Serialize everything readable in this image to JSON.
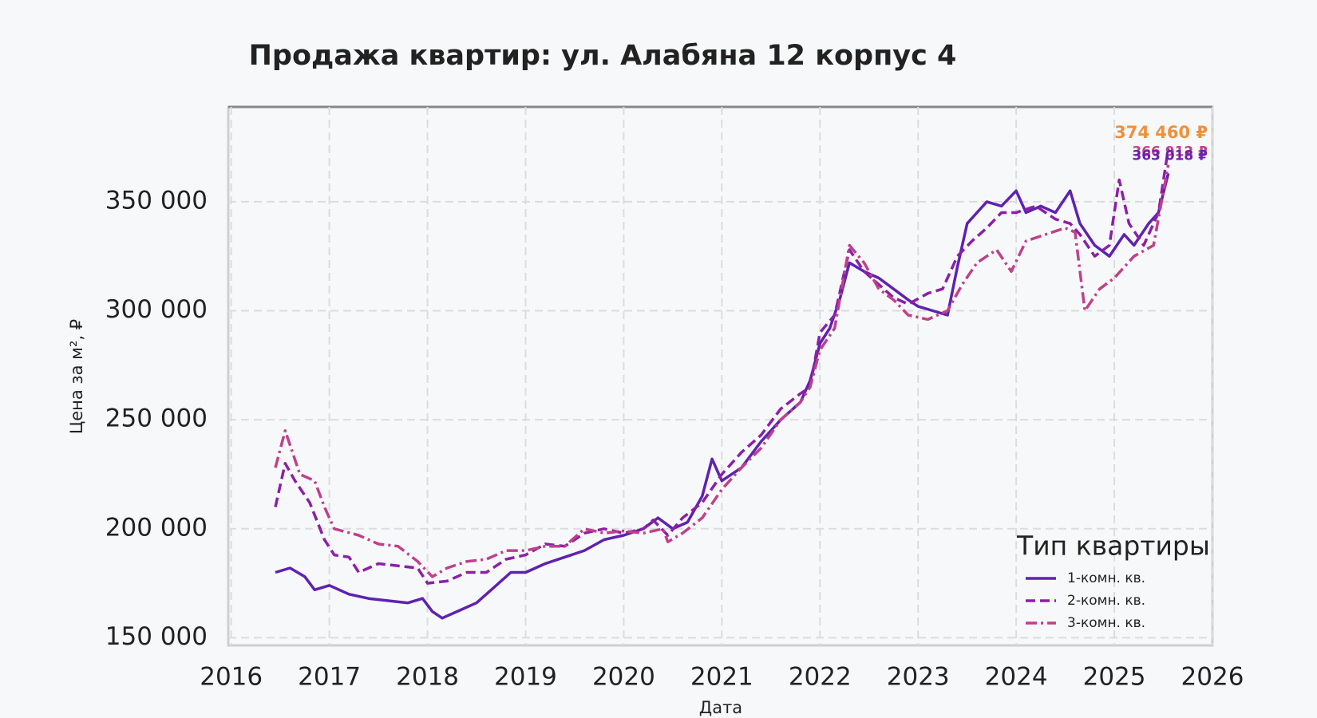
{
  "chart_data": {
    "type": "line",
    "title": "Продажа квартир: ул. Алабяна 12 корпус 4",
    "xlabel": "Дата",
    "ylabel": "Цена за м², ₽",
    "xlim": [
      2015.97,
      2026
    ],
    "xticks": [
      2016,
      2017,
      2018,
      2019,
      2020,
      2021,
      2022,
      2023,
      2024,
      2025,
      2026
    ],
    "ylim": [
      146500,
      393500
    ],
    "yticks": [
      {
        "value": 150000,
        "label": "150 000"
      },
      {
        "value": 200000,
        "label": "200 000"
      },
      {
        "value": 250000,
        "label": "250 000"
      },
      {
        "value": 300000,
        "label": "300 000"
      },
      {
        "value": 350000,
        "label": "350 000"
      }
    ],
    "grid": true,
    "legend_title": "Тип квартиры",
    "legend_position": "lower-right",
    "series": [
      {
        "name": "1-комн. кв.",
        "color": "#5e22b0",
        "dash": "solid",
        "x": [
          2016.45,
          2016.6,
          2016.75,
          2016.85,
          2017.0,
          2017.2,
          2017.4,
          2017.6,
          2017.8,
          2017.95,
          2018.05,
          2018.15,
          2018.3,
          2018.5,
          2018.65,
          2018.75,
          2018.85,
          2019.0,
          2019.2,
          2019.4,
          2019.6,
          2019.8,
          2020.0,
          2020.2,
          2020.35,
          2020.5,
          2020.65,
          2020.8,
          2020.9,
          2021.0,
          2021.2,
          2021.4,
          2021.6,
          2021.8,
          2021.9,
          2022.0,
          2022.1,
          2022.2,
          2022.3,
          2022.45,
          2022.6,
          2022.75,
          2022.9,
          2023.0,
          2023.15,
          2023.3,
          2023.4,
          2023.5,
          2023.6,
          2023.7,
          2023.85,
          2024.0,
          2024.1,
          2024.25,
          2024.4,
          2024.55,
          2024.65,
          2024.8,
          2024.95,
          2025.1,
          2025.2,
          2025.35,
          2025.45,
          2025.55
        ],
        "values": [
          180000,
          182000,
          178000,
          172000,
          174000,
          170000,
          168000,
          167000,
          166000,
          168000,
          162000,
          159000,
          162000,
          166000,
          172000,
          176000,
          180000,
          180000,
          184000,
          187000,
          190000,
          195000,
          197000,
          200000,
          205000,
          200000,
          203000,
          215000,
          232000,
          222000,
          228000,
          240000,
          250000,
          258000,
          268000,
          285000,
          292000,
          305000,
          322000,
          318000,
          315000,
          310000,
          305000,
          302000,
          300000,
          298000,
          320000,
          340000,
          345000,
          350000,
          348000,
          355000,
          345000,
          348000,
          345000,
          355000,
          340000,
          330000,
          325000,
          335000,
          330000,
          340000,
          345000,
          363018
        ]
      },
      {
        "name": "2-комн. кв.",
        "color": "#8c1fa8",
        "dash": "dashed",
        "x": [
          2016.45,
          2016.55,
          2016.65,
          2016.8,
          2016.95,
          2017.05,
          2017.2,
          2017.3,
          2017.5,
          2017.7,
          2017.9,
          2018.0,
          2018.2,
          2018.4,
          2018.6,
          2018.8,
          2019.0,
          2019.2,
          2019.4,
          2019.6,
          2019.8,
          2020.0,
          2020.2,
          2020.3,
          2020.45,
          2020.6,
          2020.8,
          2021.0,
          2021.2,
          2021.4,
          2021.6,
          2021.8,
          2021.9,
          2022.0,
          2022.15,
          2022.3,
          2022.45,
          2022.6,
          2022.75,
          2022.9,
          2023.1,
          2023.25,
          2023.4,
          2023.55,
          2023.7,
          2023.85,
          2024.0,
          2024.2,
          2024.4,
          2024.55,
          2024.65,
          2024.8,
          2024.95,
          2025.05,
          2025.15,
          2025.3,
          2025.45,
          2025.55
        ],
        "values": [
          210000,
          230000,
          222000,
          212000,
          195000,
          188000,
          187000,
          180000,
          184000,
          183000,
          182000,
          175000,
          176000,
          180000,
          180000,
          186000,
          188000,
          193000,
          192000,
          198000,
          200000,
          198000,
          200000,
          204000,
          197000,
          205000,
          212000,
          225000,
          235000,
          243000,
          255000,
          262000,
          265000,
          290000,
          298000,
          328000,
          318000,
          312000,
          306000,
          303000,
          308000,
          310000,
          325000,
          332000,
          338000,
          345000,
          345000,
          348000,
          342000,
          340000,
          335000,
          325000,
          330000,
          360000,
          340000,
          330000,
          345000,
          374460
        ]
      },
      {
        "name": "3-комн. кв.",
        "color": "#c0408a",
        "dash": "dashdot",
        "x": [
          2016.45,
          2016.55,
          2016.7,
          2016.85,
          2016.95,
          2017.05,
          2017.3,
          2017.5,
          2017.7,
          2017.9,
          2018.05,
          2018.2,
          2018.4,
          2018.6,
          2018.8,
          2019.0,
          2019.2,
          2019.4,
          2019.6,
          2019.8,
          2020.0,
          2020.2,
          2020.4,
          2020.45,
          2020.6,
          2020.8,
          2021.0,
          2021.2,
          2021.4,
          2021.6,
          2021.8,
          2021.9,
          2022.0,
          2022.15,
          2022.3,
          2022.45,
          2022.6,
          2022.75,
          2022.9,
          2023.1,
          2023.3,
          2023.45,
          2023.6,
          2023.8,
          2023.95,
          2024.1,
          2024.3,
          2024.5,
          2024.6,
          2024.7,
          2024.85,
          2025.0,
          2025.2,
          2025.4,
          2025.55
        ],
        "values": [
          228000,
          245000,
          225000,
          222000,
          210000,
          200000,
          197000,
          193000,
          192000,
          185000,
          178000,
          182000,
          185000,
          186000,
          190000,
          190000,
          192000,
          192000,
          200000,
          198000,
          199000,
          198000,
          200000,
          194000,
          198000,
          205000,
          218000,
          228000,
          237000,
          250000,
          258000,
          265000,
          282000,
          292000,
          330000,
          322000,
          310000,
          305000,
          298000,
          296000,
          300000,
          312000,
          322000,
          328000,
          318000,
          332000,
          335000,
          338000,
          336000,
          300000,
          310000,
          315000,
          325000,
          330000,
          366912
        ]
      }
    ],
    "annotations": [
      {
        "label": "366 912 ₽",
        "value": 366912,
        "color": "#c0408a"
      },
      {
        "label": "374 460 ₽",
        "value": 374460,
        "color": "#f0903c"
      },
      {
        "label": "363 018 ₽",
        "value": 363018,
        "color": "#6a1fb0"
      }
    ]
  }
}
